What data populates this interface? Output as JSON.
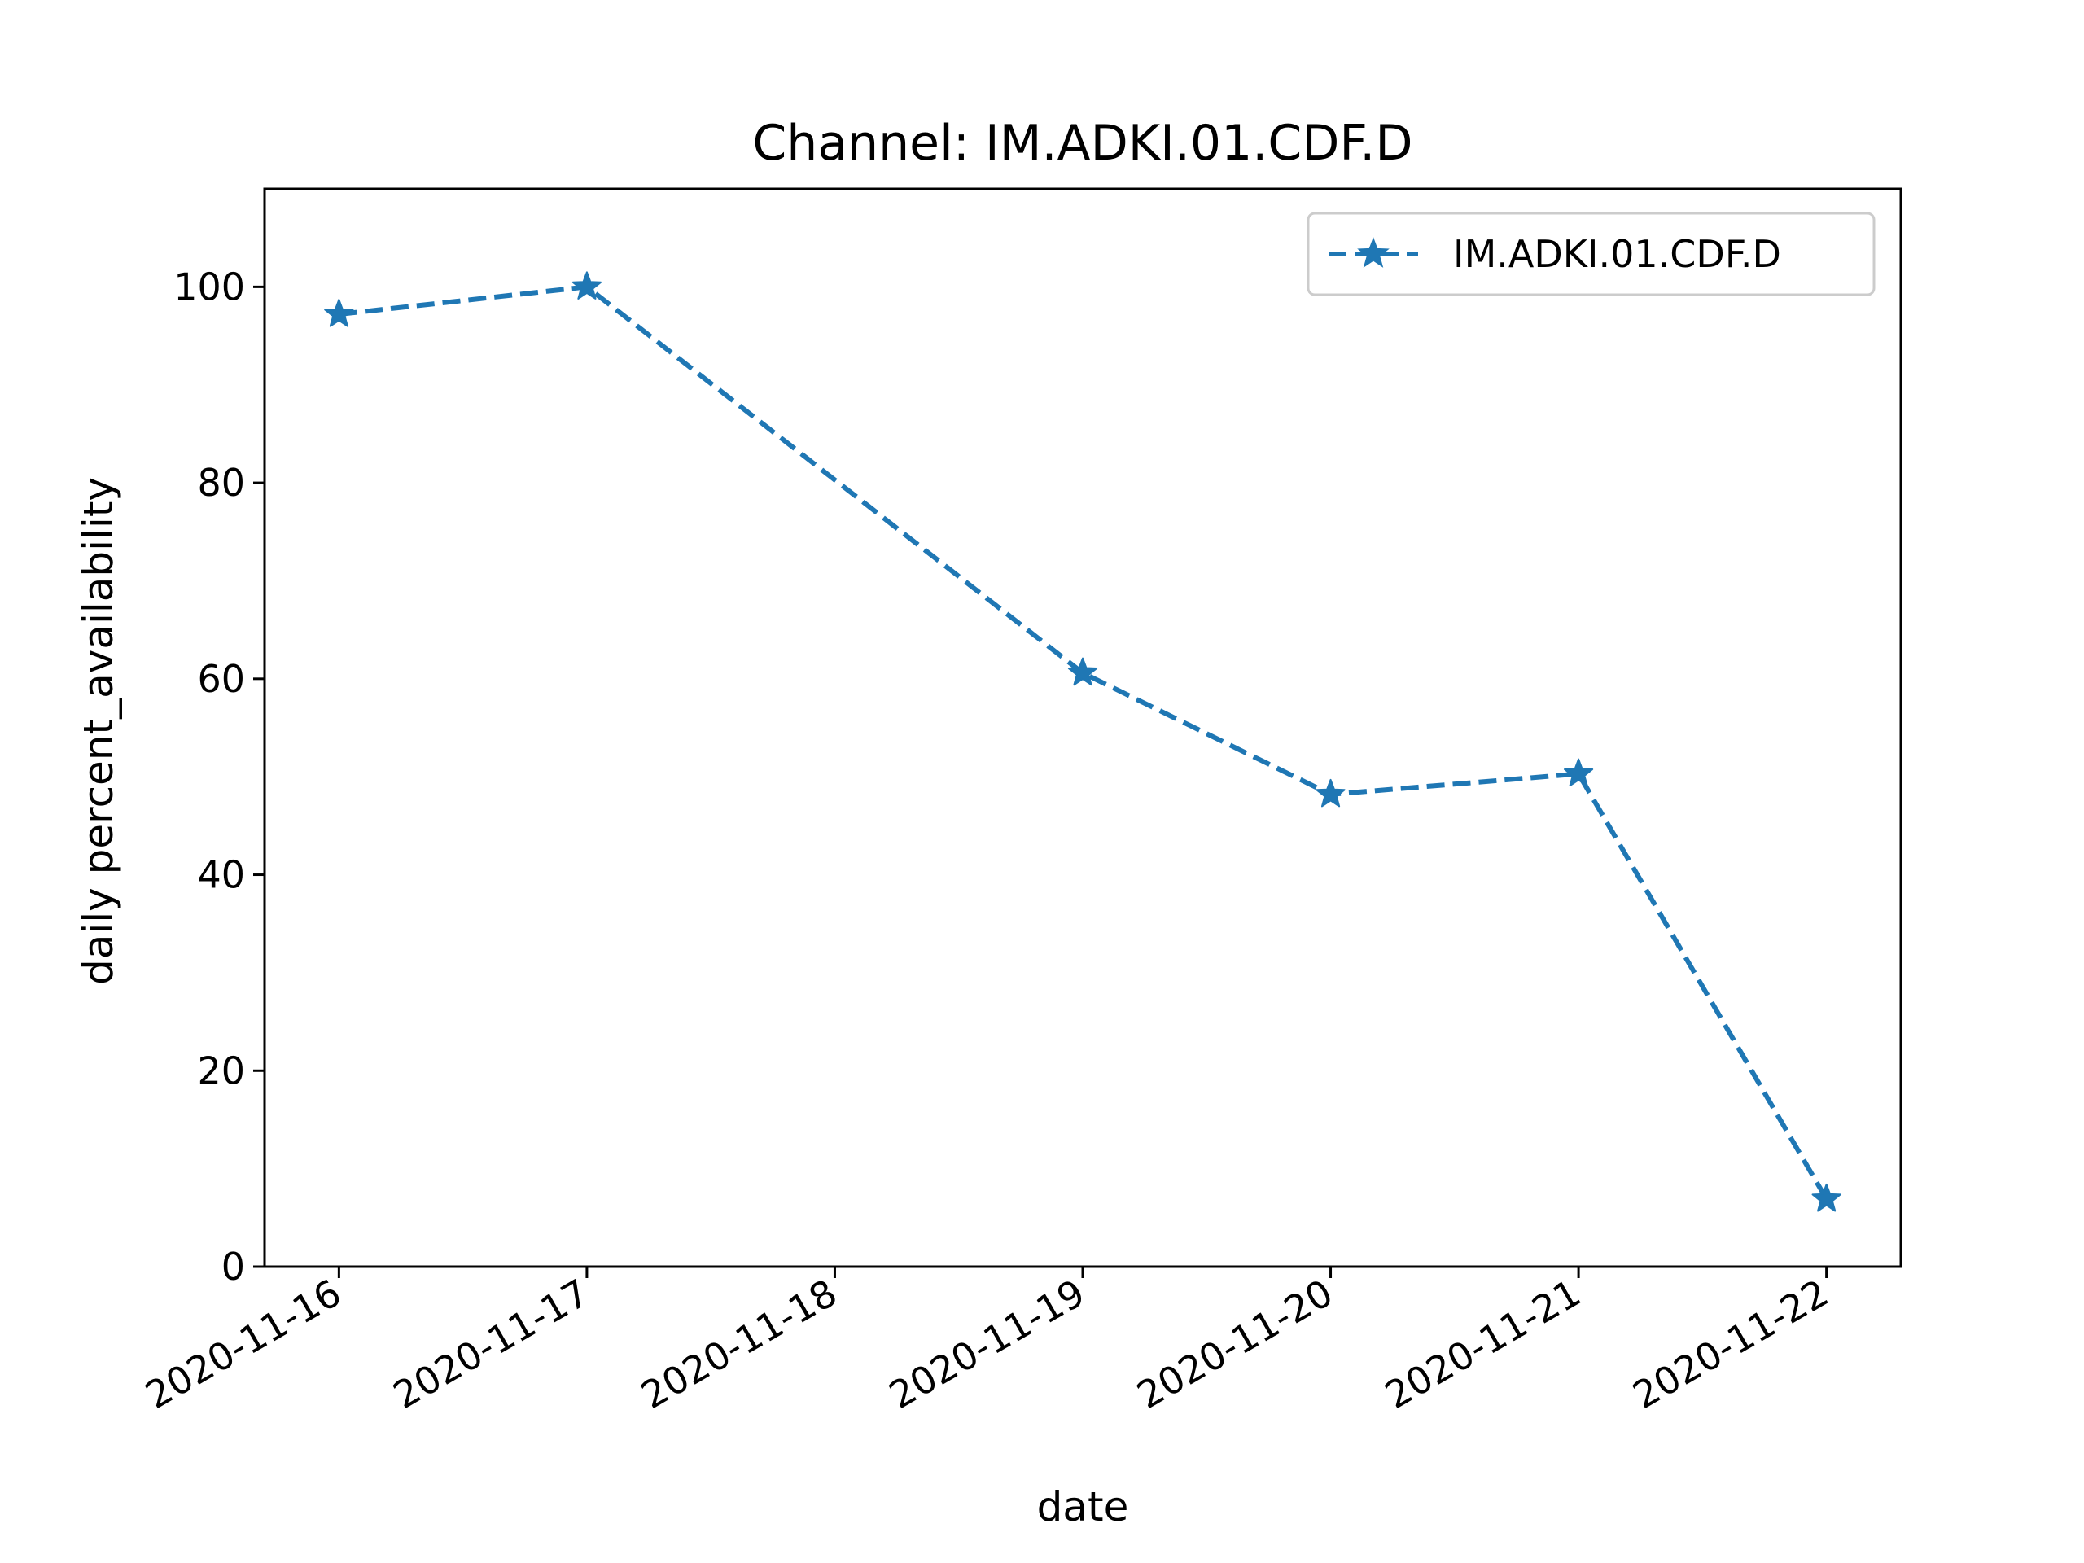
{
  "chart_data": {
    "type": "line",
    "title": "Channel: IM.ADKI.01.CDF.D",
    "xlabel": "date",
    "ylabel": "daily percent_availability",
    "x_ticks": [
      "2020-11-16",
      "2020-11-17",
      "2020-11-18",
      "2020-11-19",
      "2020-11-20",
      "2020-11-21",
      "2020-11-22"
    ],
    "y_ticks": [
      0,
      20,
      40,
      60,
      80,
      100
    ],
    "ylim": [
      0,
      110
    ],
    "xlim": [
      "2020-11-15.7",
      "2020-11-22.3"
    ],
    "grid": false,
    "legend_position": "top-right",
    "series": [
      {
        "name": "IM.ADKI.01.CDF.D",
        "color": "#1f77b4",
        "line_style": "dashed",
        "marker": "star",
        "points": [
          {
            "x": "2020-11-16",
            "y": 97.2
          },
          {
            "x": "2020-11-17",
            "y": 100
          },
          {
            "x": "2020-11-19",
            "y": 60.6
          },
          {
            "x": "2020-11-20",
            "y": 48.2
          },
          {
            "x": "2020-11-21",
            "y": 50.3
          },
          {
            "x": "2020-11-22",
            "y": 6.9
          }
        ]
      }
    ]
  }
}
